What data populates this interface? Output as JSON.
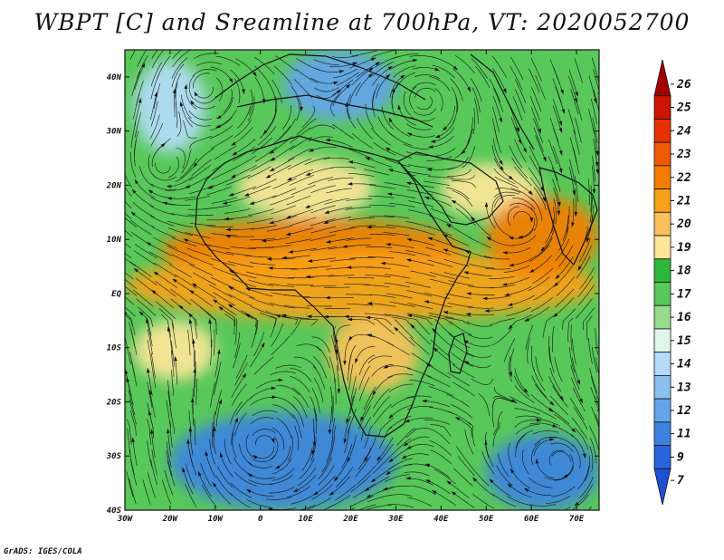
{
  "title": "WBPT [C] and Sreamline at 700hPa, VT: 2020052700",
  "credit": "GrADS: IGES/COLA",
  "map": {
    "lon_range": [
      -30,
      75
    ],
    "lat_range": [
      -40,
      45
    ],
    "lon_ticks": [
      {
        "value": -30,
        "label": "30W"
      },
      {
        "value": -20,
        "label": "20W"
      },
      {
        "value": -10,
        "label": "10W"
      },
      {
        "value": 0,
        "label": "0"
      },
      {
        "value": 10,
        "label": "10E"
      },
      {
        "value": 20,
        "label": "20E"
      },
      {
        "value": 30,
        "label": "30E"
      },
      {
        "value": 40,
        "label": "40E"
      },
      {
        "value": 50,
        "label": "50E"
      },
      {
        "value": 60,
        "label": "60E"
      },
      {
        "value": 70,
        "label": "70E"
      }
    ],
    "lat_ticks": [
      {
        "value": 40,
        "label": "40N"
      },
      {
        "value": 30,
        "label": "30N"
      },
      {
        "value": 20,
        "label": "20N"
      },
      {
        "value": 10,
        "label": "10N"
      },
      {
        "value": 0,
        "label": "EQ"
      },
      {
        "value": -10,
        "label": "10S"
      },
      {
        "value": -20,
        "label": "20S"
      },
      {
        "value": -30,
        "label": "30S"
      },
      {
        "value": -40,
        "label": "40S"
      }
    ],
    "temperature_regions": [
      {
        "name": "northern-cool-blue",
        "lon": [
          5,
          30
        ],
        "lat": [
          32,
          45
        ],
        "value": 12
      },
      {
        "name": "northwest-blue",
        "lon": [
          -28,
          -12
        ],
        "lat": [
          26,
          43
        ],
        "value": 14
      },
      {
        "name": "sahara-yellow",
        "lon": [
          -5,
          25
        ],
        "lat": [
          14,
          25
        ],
        "value": 19
      },
      {
        "name": "arabia-yellow",
        "lon": [
          40,
          62
        ],
        "lat": [
          14,
          24
        ],
        "value": 19
      },
      {
        "name": "sahel-orange-band",
        "lon": [
          -22,
          45
        ],
        "lat": [
          2,
          14
        ],
        "value": 22
      },
      {
        "name": "equatorial-orange-band",
        "lon": [
          -30,
          75
        ],
        "lat": [
          -5,
          8
        ],
        "value": 21
      },
      {
        "name": "india-arabian-sea-orange",
        "lon": [
          50,
          75
        ],
        "lat": [
          3,
          18
        ],
        "value": 22
      },
      {
        "name": "south-central-africa-orange",
        "lon": [
          15,
          35
        ],
        "lat": [
          -18,
          -4
        ],
        "value": 20
      },
      {
        "name": "southwest-yellow",
        "lon": [
          -28,
          -10
        ],
        "lat": [
          -16,
          -5
        ],
        "value": 19
      },
      {
        "name": "south-atlantic-blue",
        "lon": [
          -20,
          30
        ],
        "lat": [
          -40,
          -22
        ],
        "value": 11
      },
      {
        "name": "southern-indian-ocean-blue",
        "lon": [
          50,
          75
        ],
        "lat": [
          -40,
          -26
        ],
        "value": 11
      }
    ]
  },
  "colorbar": {
    "levels": [
      {
        "label": "26",
        "color": "#a00000"
      },
      {
        "label": "25",
        "color": "#cc1400"
      },
      {
        "label": "24",
        "color": "#e63200"
      },
      {
        "label": "23",
        "color": "#ee5a00"
      },
      {
        "label": "22",
        "color": "#f47d00"
      },
      {
        "label": "21",
        "color": "#f9a11a"
      },
      {
        "label": "20",
        "color": "#fbc05a"
      },
      {
        "label": "19",
        "color": "#fde698"
      },
      {
        "label": "18",
        "color": "#2db83c"
      },
      {
        "label": "17",
        "color": "#58c85a"
      },
      {
        "label": "16",
        "color": "#96dc8c"
      },
      {
        "label": "15",
        "color": "#e0f6ea"
      },
      {
        "label": "14",
        "color": "#b4dcfa"
      },
      {
        "label": "13",
        "color": "#8cc0f0"
      },
      {
        "label": "12",
        "color": "#64a4eb"
      },
      {
        "label": "11",
        "color": "#3c82e1"
      },
      {
        "label": "9",
        "color": "#2864dc"
      },
      {
        "label": "7",
        "color": "#1e50d2"
      }
    ]
  }
}
